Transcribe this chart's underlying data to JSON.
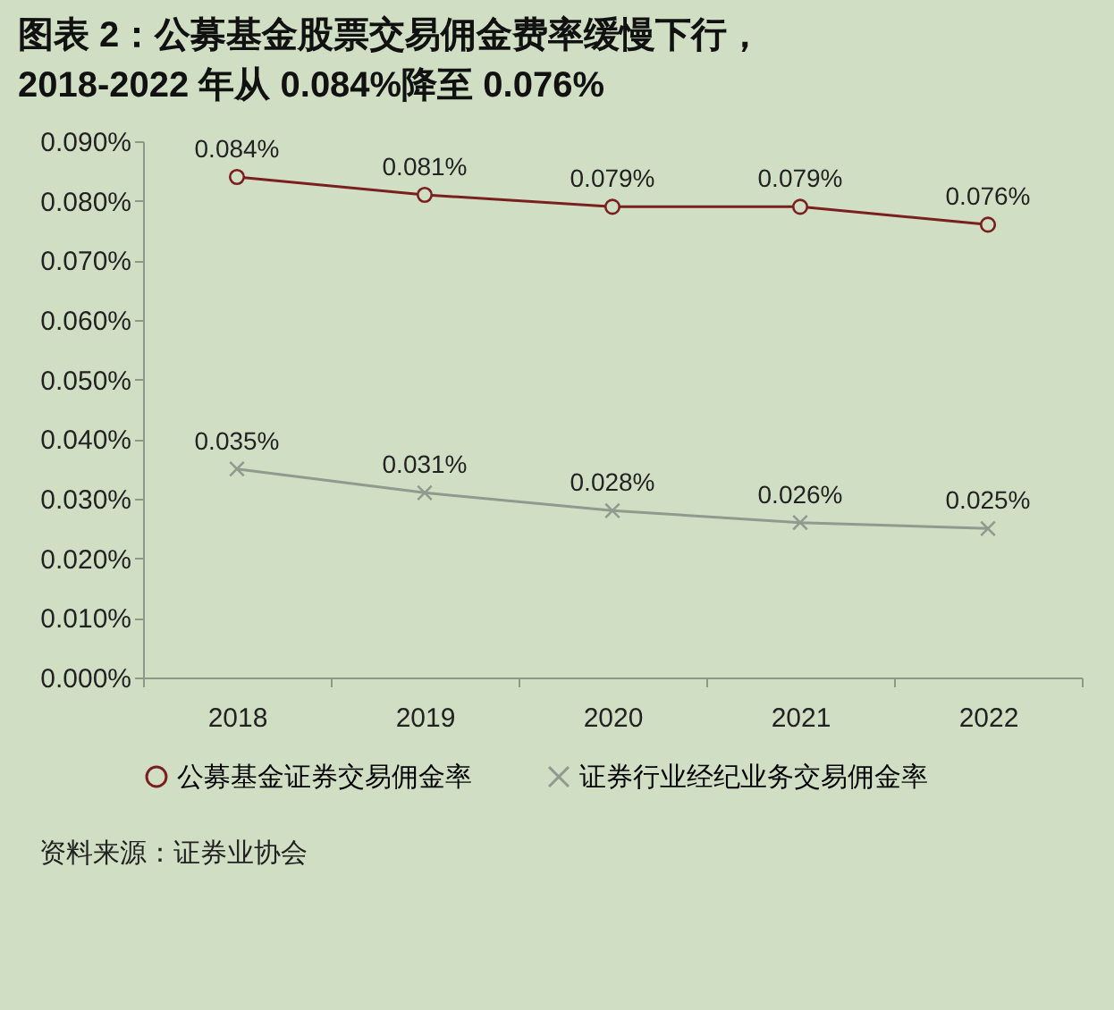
{
  "chart_data": {
    "type": "line",
    "title": "图表 2：公募基金股票交易佣金费率缓慢下行，",
    "subtitle": "2018-2022 年从 0.084%降至 0.076%",
    "categories": [
      "2018",
      "2019",
      "2020",
      "2021",
      "2022"
    ],
    "series": [
      {
        "name": "公募基金证券交易佣金率",
        "color": "#7a1f1f",
        "marker": "circle",
        "values": [
          0.084,
          0.081,
          0.079,
          0.079,
          0.076
        ],
        "value_labels": [
          "0.084%",
          "0.081%",
          "0.079%",
          "0.079%",
          "0.076%"
        ]
      },
      {
        "name": "证券行业经纪业务交易佣金率",
        "color": "#909a8e",
        "marker": "cross",
        "values": [
          0.035,
          0.031,
          0.028,
          0.026,
          0.025
        ],
        "value_labels": [
          "0.035%",
          "0.031%",
          "0.028%",
          "0.026%",
          "0.025%"
        ]
      }
    ],
    "ylim": [
      0,
      0.09
    ],
    "yticks": [
      {
        "value": 0,
        "label": "0.000%"
      },
      {
        "value": 0.01,
        "label": "0.010%"
      },
      {
        "value": 0.02,
        "label": "0.020%"
      },
      {
        "value": 0.03,
        "label": "0.030%"
      },
      {
        "value": 0.04,
        "label": "0.040%"
      },
      {
        "value": 0.05,
        "label": "0.050%"
      },
      {
        "value": 0.06,
        "label": "0.060%"
      },
      {
        "value": 0.07,
        "label": "0.070%"
      },
      {
        "value": 0.08,
        "label": "0.080%"
      },
      {
        "value": 0.09,
        "label": "0.090%"
      }
    ],
    "grid": false,
    "legend": "bottom",
    "annotations": [
      "资料来源：证券业协会"
    ]
  }
}
